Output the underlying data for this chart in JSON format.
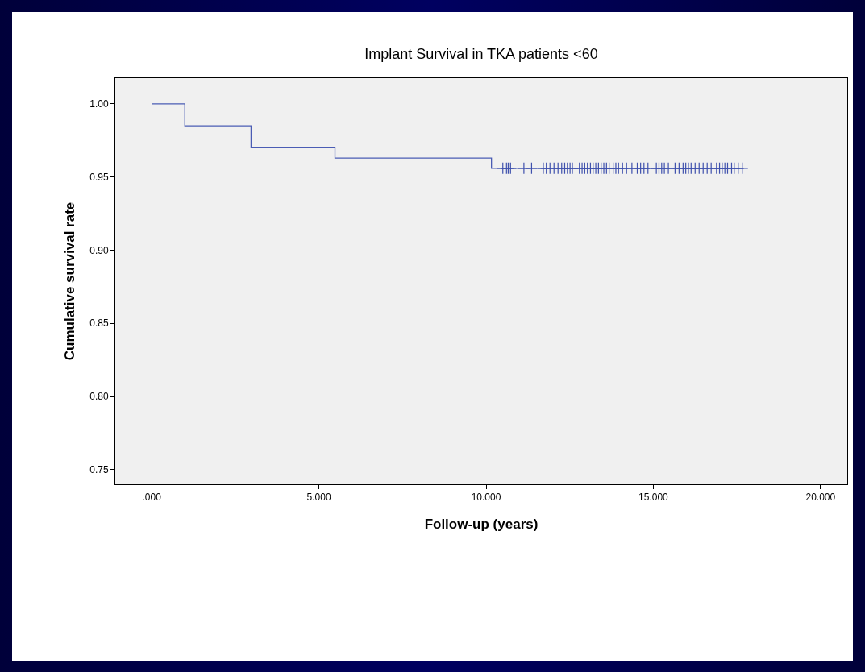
{
  "chart_data": {
    "type": "step",
    "title": "Implant Survival in TKA patients <60",
    "xlabel": "Follow-up (years)",
    "ylabel": "Cumulative survival rate",
    "xlim": [
      -1.09,
      20.8
    ],
    "ylim": [
      0.74,
      1.0176
    ],
    "xticks": [
      {
        "value": 0,
        "label": ".000"
      },
      {
        "value": 5,
        "label": "5.000"
      },
      {
        "value": 10,
        "label": "10.000"
      },
      {
        "value": 15,
        "label": "15.000"
      },
      {
        "value": 20,
        "label": "20.000"
      }
    ],
    "yticks": [
      {
        "value": 0.75,
        "label": "0.75"
      },
      {
        "value": 0.8,
        "label": "0.80"
      },
      {
        "value": 0.85,
        "label": "0.85"
      },
      {
        "value": 0.9,
        "label": "0.90"
      },
      {
        "value": 0.95,
        "label": "0.95"
      },
      {
        "value": 1,
        "label": "1.00"
      }
    ],
    "series": [
      {
        "color": "#4a5cb4",
        "x": [
          0,
          0.99,
          2.97,
          5.48,
          10.16,
          17.68
        ],
        "values": [
          1,
          0.985,
          0.97,
          0.963,
          0.956,
          0.956
        ]
      },
      {
        "type": "scatter",
        "marker": "cross",
        "color": "#3f51ad",
        "x": [
          10.5,
          10.61,
          10.66,
          10.73,
          11.13,
          11.36,
          11.71,
          11.8,
          11.91,
          12.03,
          12.15,
          12.26,
          12.35,
          12.43,
          12.51,
          12.58,
          12.79,
          12.87,
          12.95,
          13.03,
          13.12,
          13.2,
          13.28,
          13.36,
          13.44,
          13.52,
          13.6,
          13.68,
          13.8,
          13.88,
          13.96,
          14.08,
          14.2,
          14.36,
          14.52,
          14.62,
          14.72,
          14.84,
          15.09,
          15.17,
          15.25,
          15.33,
          15.45,
          15.65,
          15.77,
          15.89,
          15.97,
          16.05,
          16.13,
          16.25,
          16.37,
          16.49,
          16.61,
          16.73,
          16.89,
          16.98,
          17.06,
          17.14,
          17.22,
          17.34,
          17.42,
          17.54,
          17.66
        ],
        "values": [
          0.956,
          0.956,
          0.956,
          0.956,
          0.956,
          0.956,
          0.956,
          0.956,
          0.956,
          0.956,
          0.956,
          0.956,
          0.956,
          0.956,
          0.956,
          0.956,
          0.956,
          0.956,
          0.956,
          0.956,
          0.956,
          0.956,
          0.956,
          0.956,
          0.956,
          0.956,
          0.956,
          0.956,
          0.956,
          0.956,
          0.956,
          0.956,
          0.956,
          0.956,
          0.956,
          0.956,
          0.956,
          0.956,
          0.956,
          0.956,
          0.956,
          0.956,
          0.956,
          0.956,
          0.956,
          0.956,
          0.956,
          0.956,
          0.956,
          0.956,
          0.956,
          0.956,
          0.956,
          0.956,
          0.956,
          0.956,
          0.956,
          0.956,
          0.956,
          0.956,
          0.956,
          0.956,
          0.956
        ]
      }
    ]
  }
}
